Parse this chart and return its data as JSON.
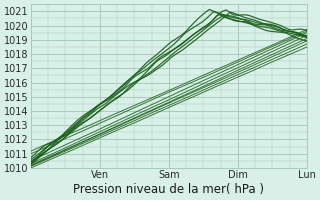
{
  "title": "",
  "xlabel": "Pression niveau de la mer( hPa )",
  "ylabel": "",
  "ylim": [
    1010,
    1021.5
  ],
  "xlim": [
    0,
    96
  ],
  "yticks": [
    1010,
    1011,
    1012,
    1013,
    1014,
    1015,
    1016,
    1017,
    1018,
    1019,
    1020,
    1021
  ],
  "xtick_positions": [
    0,
    24,
    48,
    72,
    96
  ],
  "xtick_labels": [
    "",
    "Ven",
    "Sam",
    "Dim",
    "Lun"
  ],
  "bg_color": "#d8f0e8",
  "grid_color": "#a8cbb8",
  "line_color": "#1a5e1a",
  "tick_fontsize": 7,
  "label_fontsize": 8.5
}
